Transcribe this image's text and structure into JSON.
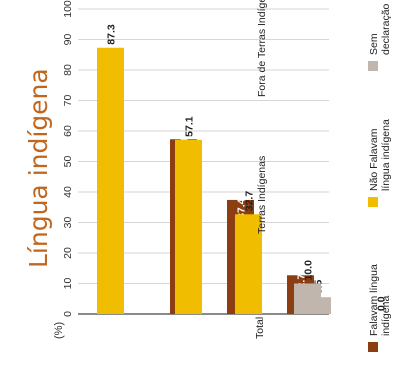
{
  "chart_data": {
    "type": "bar",
    "title": "Língua indígena",
    "unit_label": "(%)",
    "ylim": [
      0,
      100
    ],
    "yticks": [
      0,
      10,
      20,
      30,
      40,
      50,
      60,
      70,
      80,
      90,
      100
    ],
    "categories": [
      "Total",
      "Terras Indígenas",
      "Fora de Terras Indígenas"
    ],
    "series": [
      {
        "name": "Falavam língua indígena",
        "values": [
          37.4,
          57.3,
          12.7
        ],
        "value_labels": [
          "37.4",
          "57.3",
          "12.7"
        ],
        "color": "#8b3e12"
      },
      {
        "name": "Não Falavam língua indígena",
        "values": [
          57.1,
          32.7,
          87.3
        ],
        "value_labels": [
          "57.1",
          "32.7",
          "87.3"
        ],
        "color": "#f1bd00"
      },
      {
        "name": "Sem declaração",
        "values": [
          5.5,
          10.0,
          0.0
        ],
        "value_labels": [
          "5.5",
          "10.0",
          "0.0"
        ],
        "color": "#c1b6ad"
      }
    ],
    "grid": true,
    "legend_position": "bottom",
    "title_color": "#c0661e"
  }
}
